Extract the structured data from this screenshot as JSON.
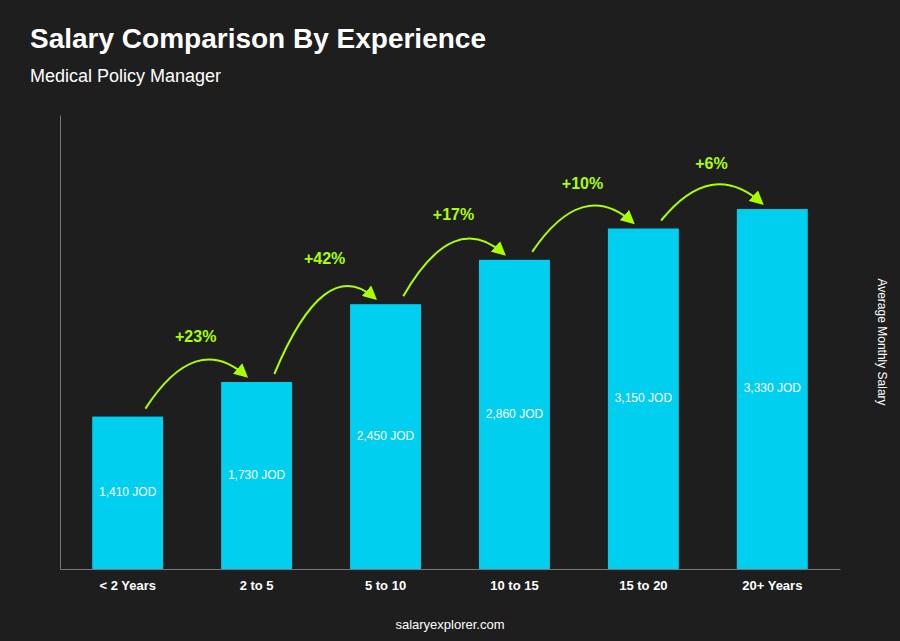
{
  "chart_data": {
    "type": "bar",
    "title": "Salary Comparison By Experience",
    "subtitle": "Medical Policy Manager",
    "y_label": "Average Monthly Salary",
    "caption": "salaryexplorer.com",
    "categories": [
      "< 2 Years",
      "2 to 5",
      "5 to 10",
      "10 to 15",
      "15 to 20",
      "20+ Years"
    ],
    "values": [
      1410,
      1730,
      2450,
      2860,
      3150,
      3330
    ],
    "value_labels": [
      "1,410 JOD",
      "1,730 JOD",
      "2,450 JOD",
      "2,860 JOD",
      "3,150 JOD",
      "3,330 JOD"
    ],
    "data_labels": true,
    "color": "#00CFEF",
    "ylim": [
      0,
      4200
    ],
    "grid": false,
    "tick_labels": "x",
    "annotations": [
      {
        "text": "+23%",
        "color": "#AAFF00"
      },
      {
        "text": "+42%",
        "color": "#AAFF00"
      },
      {
        "text": "+17%",
        "color": "#AAFF00"
      },
      {
        "text": "+10%",
        "color": "#AAFF00"
      },
      {
        "text": "+6%",
        "color": "#AAFF00"
      }
    ]
  }
}
